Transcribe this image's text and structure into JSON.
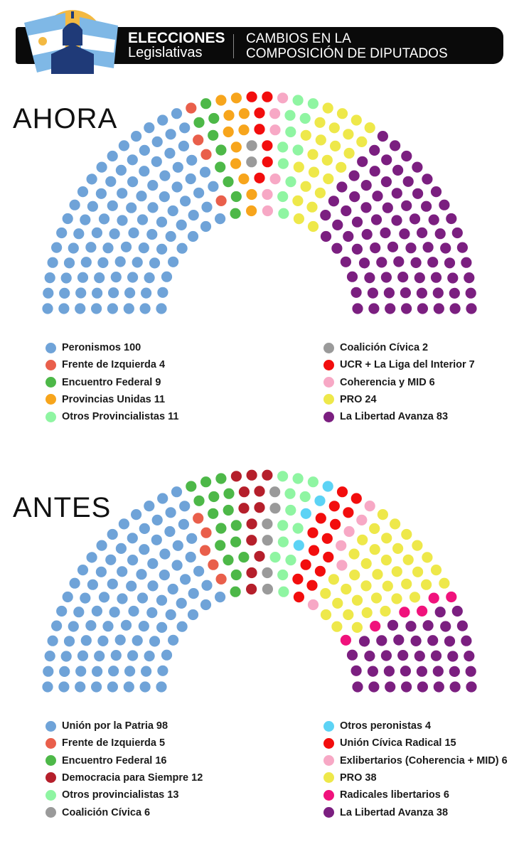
{
  "header": {
    "brand_bold": "ELECCIONES",
    "brand_light": "Legislativas",
    "title_line1": "CAMBIOS EN LA",
    "title_line2": "COMPOSICIÓN DE DIPUTADOS"
  },
  "chart_data": [
    {
      "type": "parliament",
      "title": "AHORA",
      "total_seats": 257,
      "rows": 8,
      "legend_columns": 2,
      "series": [
        {
          "name": "Peronismos",
          "value": 100,
          "color": "#6fa3d8"
        },
        {
          "name": "Frente de Izquierda",
          "value": 4,
          "color": "#e95f4b"
        },
        {
          "name": "Encuentro Federal",
          "value": 9,
          "color": "#4db848"
        },
        {
          "name": "Provincias Unidas",
          "value": 11,
          "color": "#f7a51c"
        },
        {
          "name": "Otros Provincialistas",
          "value": 11,
          "color": "#8ff5a2"
        },
        {
          "name": "Coalición Cívica",
          "value": 2,
          "color": "#9a9a9a"
        },
        {
          "name": "UCR + La Liga del Interior",
          "value": 7,
          "color": "#f20d0d"
        },
        {
          "name": "Coherencia y MID",
          "value": 6,
          "color": "#f7a8c5"
        },
        {
          "name": "PRO",
          "value": 24,
          "color": "#eee84a"
        },
        {
          "name": "La Libertad Avanza",
          "value": 83,
          "color": "#7b1f80"
        }
      ]
    },
    {
      "type": "parliament",
      "title": "ANTES",
      "total_seats": 257,
      "rows": 8,
      "legend_columns": 2,
      "series": [
        {
          "name": "Unión por la Patria",
          "value": 98,
          "color": "#6fa3d8"
        },
        {
          "name": "Frente de Izquierda",
          "value": 5,
          "color": "#e95f4b"
        },
        {
          "name": "Encuentro Federal",
          "value": 16,
          "color": "#4db848"
        },
        {
          "name": "Democracia para Siempre",
          "value": 12,
          "color": "#b51f2b"
        },
        {
          "name": "Otros provincialistas",
          "value": 13,
          "color": "#8ff5a2"
        },
        {
          "name": "Coalición Cívica",
          "value": 6,
          "color": "#9a9a9a"
        },
        {
          "name": "Otros peronistas",
          "value": 4,
          "color": "#5cd3f5"
        },
        {
          "name": "Unión Cívica Radical",
          "value": 15,
          "color": "#f20d0d"
        },
        {
          "name": "Exlibertarios (Coherencia + MID)",
          "value": 6,
          "color": "#f7a8c5"
        },
        {
          "name": "PRO",
          "value": 38,
          "color": "#eee84a"
        },
        {
          "name": "Radicales libertarios",
          "value": 6,
          "color": "#f0127c"
        },
        {
          "name": "La Libertad Avanza",
          "value": 38,
          "color": "#7b1f80"
        }
      ]
    }
  ]
}
